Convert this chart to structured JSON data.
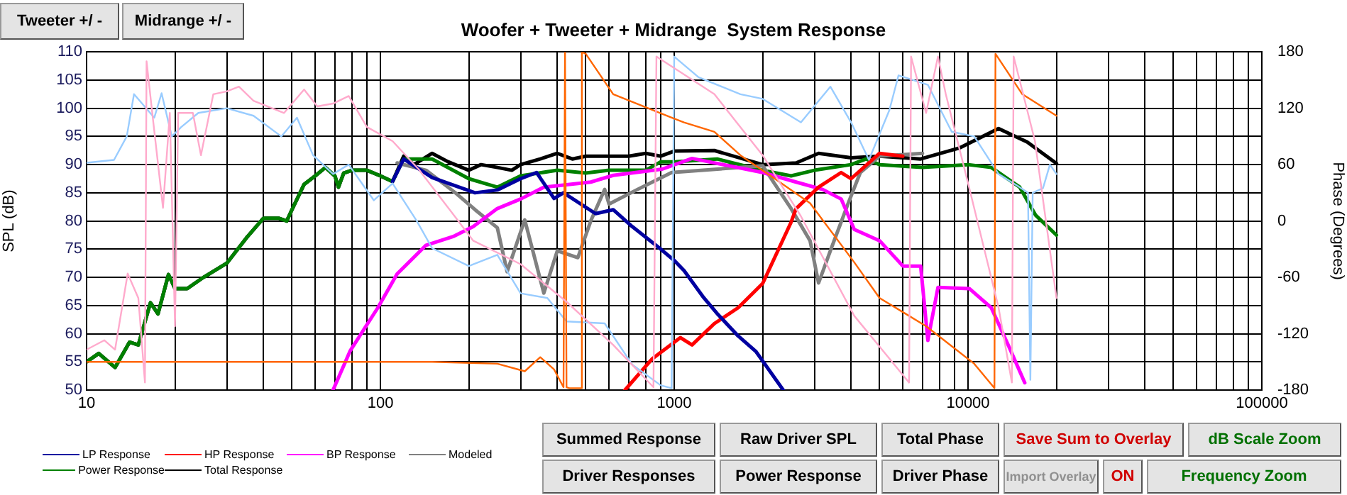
{
  "chart_data": {
    "type": "line",
    "title": "Woofer + Tweeter + Midrange  System Response",
    "ylabel": "SPL (dB)",
    "y2label": "Phase (Degrees)",
    "log": "x",
    "grid": true,
    "legend": "bottom left",
    "marker": "none",
    "line_style": "solid",
    "xlim": [
      10,
      100000
    ],
    "xticks": [
      10,
      {
        "value": 20,
        "label": null
      },
      {
        "value": 30,
        "label": null
      },
      {
        "value": 40,
        "label": null
      },
      {
        "value": 50,
        "label": null
      },
      {
        "value": 60,
        "label": null
      },
      {
        "value": 70,
        "label": null
      },
      {
        "value": 80,
        "label": null
      },
      {
        "value": 90,
        "label": null
      },
      100,
      {
        "value": 200,
        "label": null
      },
      {
        "value": 300,
        "label": null
      },
      {
        "value": 400,
        "label": null
      },
      {
        "value": 500,
        "label": null
      },
      {
        "value": 600,
        "label": null
      },
      {
        "value": 700,
        "label": null
      },
      {
        "value": 800,
        "label": null
      },
      {
        "value": 900,
        "label": null
      },
      1000,
      {
        "value": 2000,
        "label": null
      },
      {
        "value": 3000,
        "label": null
      },
      {
        "value": 4000,
        "label": null
      },
      {
        "value": 5000,
        "label": null
      },
      {
        "value": 6000,
        "label": null
      },
      {
        "value": 7000,
        "label": null
      },
      {
        "value": 8000,
        "label": null
      },
      {
        "value": 9000,
        "label": null
      },
      10000,
      {
        "value": 20000,
        "label": null
      },
      {
        "value": 30000,
        "label": null
      },
      {
        "value": 40000,
        "label": null
      },
      {
        "value": 50000,
        "label": null
      },
      {
        "value": 60000,
        "label": null
      },
      {
        "value": 70000,
        "label": null
      },
      {
        "value": 80000,
        "label": null
      },
      {
        "value": 90000,
        "label": null
      },
      100000
    ],
    "ylim": [
      50,
      110
    ],
    "yticks": [
      50,
      55,
      60,
      65,
      70,
      75,
      80,
      85,
      90,
      95,
      100,
      105,
      110
    ],
    "y2lim": [
      -180,
      180
    ],
    "y2ticks": [
      -180,
      -120,
      -60,
      0,
      60,
      120,
      180
    ],
    "series": [
      {
        "axis": "y2",
        "color": "#ffaacc",
        "x": [
          10,
          11.5,
          12.5,
          13.8,
          15,
          15.8,
          16,
          16.8,
          18.2,
          19.2,
          20,
          20.5,
          23,
          24.5,
          27,
          30,
          33,
          37,
          47,
          55,
          61,
          69,
          78,
          90,
          110,
          135,
          180,
          207,
          300,
          430,
          620,
          850,
          870,
          1370,
          2000,
          2700,
          4100,
          6300,
          6400,
          7200,
          7900,
          8400,
          10100,
          12700,
          14100,
          14300,
          16900,
          20000
        ],
        "values": [
          -137,
          -127,
          -137,
          -56,
          -82,
          -172,
          170,
          110,
          14,
          115,
          -112,
          115,
          115,
          70,
          135,
          138,
          143,
          128,
          115,
          140,
          122,
          125,
          133,
          100,
          85,
          55,
          4,
          -21,
          -46,
          -86,
          -132,
          -177,
          175,
          135,
          70,
          5,
          -101,
          -172,
          175,
          115,
          175,
          135,
          35,
          -92,
          -172,
          175,
          85,
          -82
        ]
      },
      {
        "axis": "y2",
        "color": "#ff6600",
        "x": [
          10,
          150,
          250,
          310,
          350,
          390,
          420,
          425,
          430,
          440,
          460,
          480,
          485,
          500,
          620,
          980,
          1080,
          1370,
          1680,
          2200,
          2900,
          4100,
          5000,
          7200,
          10500,
          12300,
          12400,
          15300,
          20000
        ],
        "values": [
          -150,
          -150,
          -152,
          -160,
          -145,
          -158,
          -177,
          180,
          -177,
          -178,
          -178,
          -178,
          180,
          178,
          135,
          110,
          105,
          95,
          70,
          45,
          19,
          -44,
          -82,
          -112,
          -152,
          -178,
          178,
          135,
          112
        ]
      },
      {
        "axis": "y2",
        "color": "#99ccff",
        "x": [
          10,
          12.4,
          13.7,
          14.5,
          17,
          18,
          19.5,
          21,
          24,
          30,
          37,
          46,
          52,
          59,
          69,
          78,
          95,
          110,
          133,
          150,
          200,
          250,
          300,
          370,
          430,
          580,
          720,
          900,
          980,
          1000,
          1210,
          1680,
          2000,
          2700,
          3400,
          4000,
          4600,
          5400,
          5800,
          7300,
          8800,
          10500,
          12700,
          14800,
          16000,
          16300,
          16600,
          18000,
          19000,
          20000
        ],
        "values": [
          62,
          65,
          90,
          135,
          110,
          136,
          90,
          100,
          115,
          120,
          112,
          90,
          110,
          70,
          50,
          60,
          22,
          40,
          0,
          -29,
          -48,
          -36,
          -77,
          -82,
          -107,
          -109,
          -153,
          -175,
          -178,
          175,
          153,
          135,
          130,
          105,
          143,
          105,
          65,
          118,
          155,
          145,
          95,
          90,
          50,
          37,
          30,
          -169,
          30,
          35,
          60,
          50
        ]
      },
      {
        "name": "LP Response",
        "color": "#0000a0",
        "x": [
          110,
          120,
          150,
          210,
          250,
          300,
          340,
          390,
          420,
          540,
          620,
          720,
          900,
          1000,
          1080,
          1260,
          1410,
          1650,
          1900,
          2350
        ],
        "values": [
          87,
          91,
          87.7,
          85,
          85.5,
          87.5,
          88.6,
          84,
          85,
          81.3,
          82,
          79,
          75,
          73,
          71.2,
          66.4,
          63.4,
          59.6,
          56.8,
          50
        ]
      },
      {
        "name": "HP Response",
        "color": "#ff0000",
        "x": [
          680,
          840,
          1050,
          1150,
          1370,
          1650,
          2000,
          2500,
          2600,
          3100,
          3700,
          4000,
          5000,
          6000
        ],
        "values": [
          50,
          55.5,
          59.3,
          58,
          61.8,
          64.6,
          68.9,
          79.8,
          82.2,
          86,
          88.6,
          87.5,
          92,
          91.5
        ]
      },
      {
        "name": "BP Response",
        "color": "#ff00ff",
        "x": [
          69,
          79,
          98,
          114,
          143,
          178,
          207,
          250,
          300,
          360,
          520,
          620,
          910,
          1150,
          2000,
          2600,
          3200,
          3700,
          4100,
          5000,
          6000,
          6900,
          7300,
          7900,
          10100,
          12000,
          13700,
          15600
        ],
        "values": [
          50,
          57,
          64.6,
          70.6,
          75.7,
          77.3,
          79,
          82.2,
          83.9,
          86,
          86.9,
          88.1,
          89.2,
          91.1,
          88.6,
          86.9,
          85.6,
          83.9,
          78.5,
          76.5,
          72,
          72,
          58.8,
          68.2,
          68,
          64.6,
          58,
          51.3
        ]
      },
      {
        "name": "Modeled",
        "color": "#808080",
        "x": [
          114,
          143,
          180,
          210,
          250,
          270,
          310,
          360,
          400,
          470,
          520,
          580,
          600,
          750,
          980,
          2000,
          2500,
          2900,
          3100,
          3400,
          3900,
          4300,
          5000,
          7000
        ],
        "values": [
          90.3,
          89,
          85,
          82,
          78.8,
          71,
          80.2,
          67.2,
          74.7,
          73.5,
          80,
          85.6,
          83,
          85.6,
          88.6,
          89.8,
          82.2,
          76.5,
          69,
          74.7,
          83,
          88.6,
          91.5,
          92
        ]
      },
      {
        "name": "Power Response",
        "color": "#008000",
        "x": [
          10,
          11,
          12.5,
          14,
          15,
          16.5,
          17.5,
          19,
          20,
          22,
          25,
          30,
          35,
          40,
          45,
          48,
          50,
          55,
          60,
          65,
          70,
          72,
          75,
          80,
          90,
          100,
          110,
          120,
          150,
          200,
          250,
          300,
          400,
          500,
          600,
          800,
          900,
          1000,
          1400,
          2000,
          2500,
          3000,
          4000,
          4500,
          5000,
          7000,
          10000,
          12000,
          15000,
          17000,
          20000
        ],
        "values": [
          55,
          56.5,
          54,
          58.5,
          58,
          65.5,
          63.5,
          70.5,
          68,
          68,
          70,
          72.5,
          77,
          80.5,
          80.5,
          80,
          82,
          86.5,
          88,
          89.5,
          88,
          86,
          88.5,
          89,
          89,
          88,
          87,
          91,
          91,
          87.5,
          86,
          88,
          89,
          88.5,
          89,
          89,
          90.5,
          90.5,
          91,
          89,
          88,
          89,
          90,
          91,
          90,
          89.5,
          90,
          89.5,
          86,
          81,
          77.5
        ]
      },
      {
        "name": "Total Response",
        "color": "#000000",
        "x": [
          10,
          11,
          12.5,
          14,
          15,
          16.5,
          17.5,
          19,
          20,
          22,
          25,
          30,
          35,
          40,
          45,
          48,
          50,
          55,
          60,
          65,
          70,
          72,
          75,
          80,
          90,
          100,
          110,
          120,
          130,
          150,
          170,
          200,
          220,
          250,
          280,
          300,
          350,
          400,
          450,
          500,
          600,
          700,
          800,
          900,
          1000,
          1370,
          2000,
          2600,
          3100,
          4000,
          5000,
          6900,
          9400,
          12700,
          15900,
          20000
        ],
        "values": [
          55,
          56.5,
          54,
          58.5,
          58,
          65.5,
          63.5,
          70.5,
          68,
          68,
          70,
          72.5,
          77,
          80.5,
          80.5,
          80,
          82,
          86.5,
          88,
          89.5,
          88,
          86,
          88.5,
          89,
          89,
          88,
          87,
          91.5,
          90,
          92,
          90.5,
          89,
          90,
          89.5,
          89,
          90,
          91,
          92,
          91,
          91.5,
          91.5,
          91.5,
          92,
          91.5,
          92.4,
          92.5,
          90,
          90.3,
          92,
          91.2,
          91.5,
          91,
          93,
          96.4,
          94,
          90.2
        ]
      }
    ],
    "annotations": [
      "Tweeter +/ -",
      "Midrange  +/ -",
      "Summed Response",
      "Raw Driver SPL",
      "Total Phase",
      "Save Sum to Overlay",
      "dB Scale Zoom",
      "Driver Responses",
      "Power Response",
      "Driver Phase",
      "Import Overlay",
      "ON",
      "Frequency Zoom"
    ]
  }
}
